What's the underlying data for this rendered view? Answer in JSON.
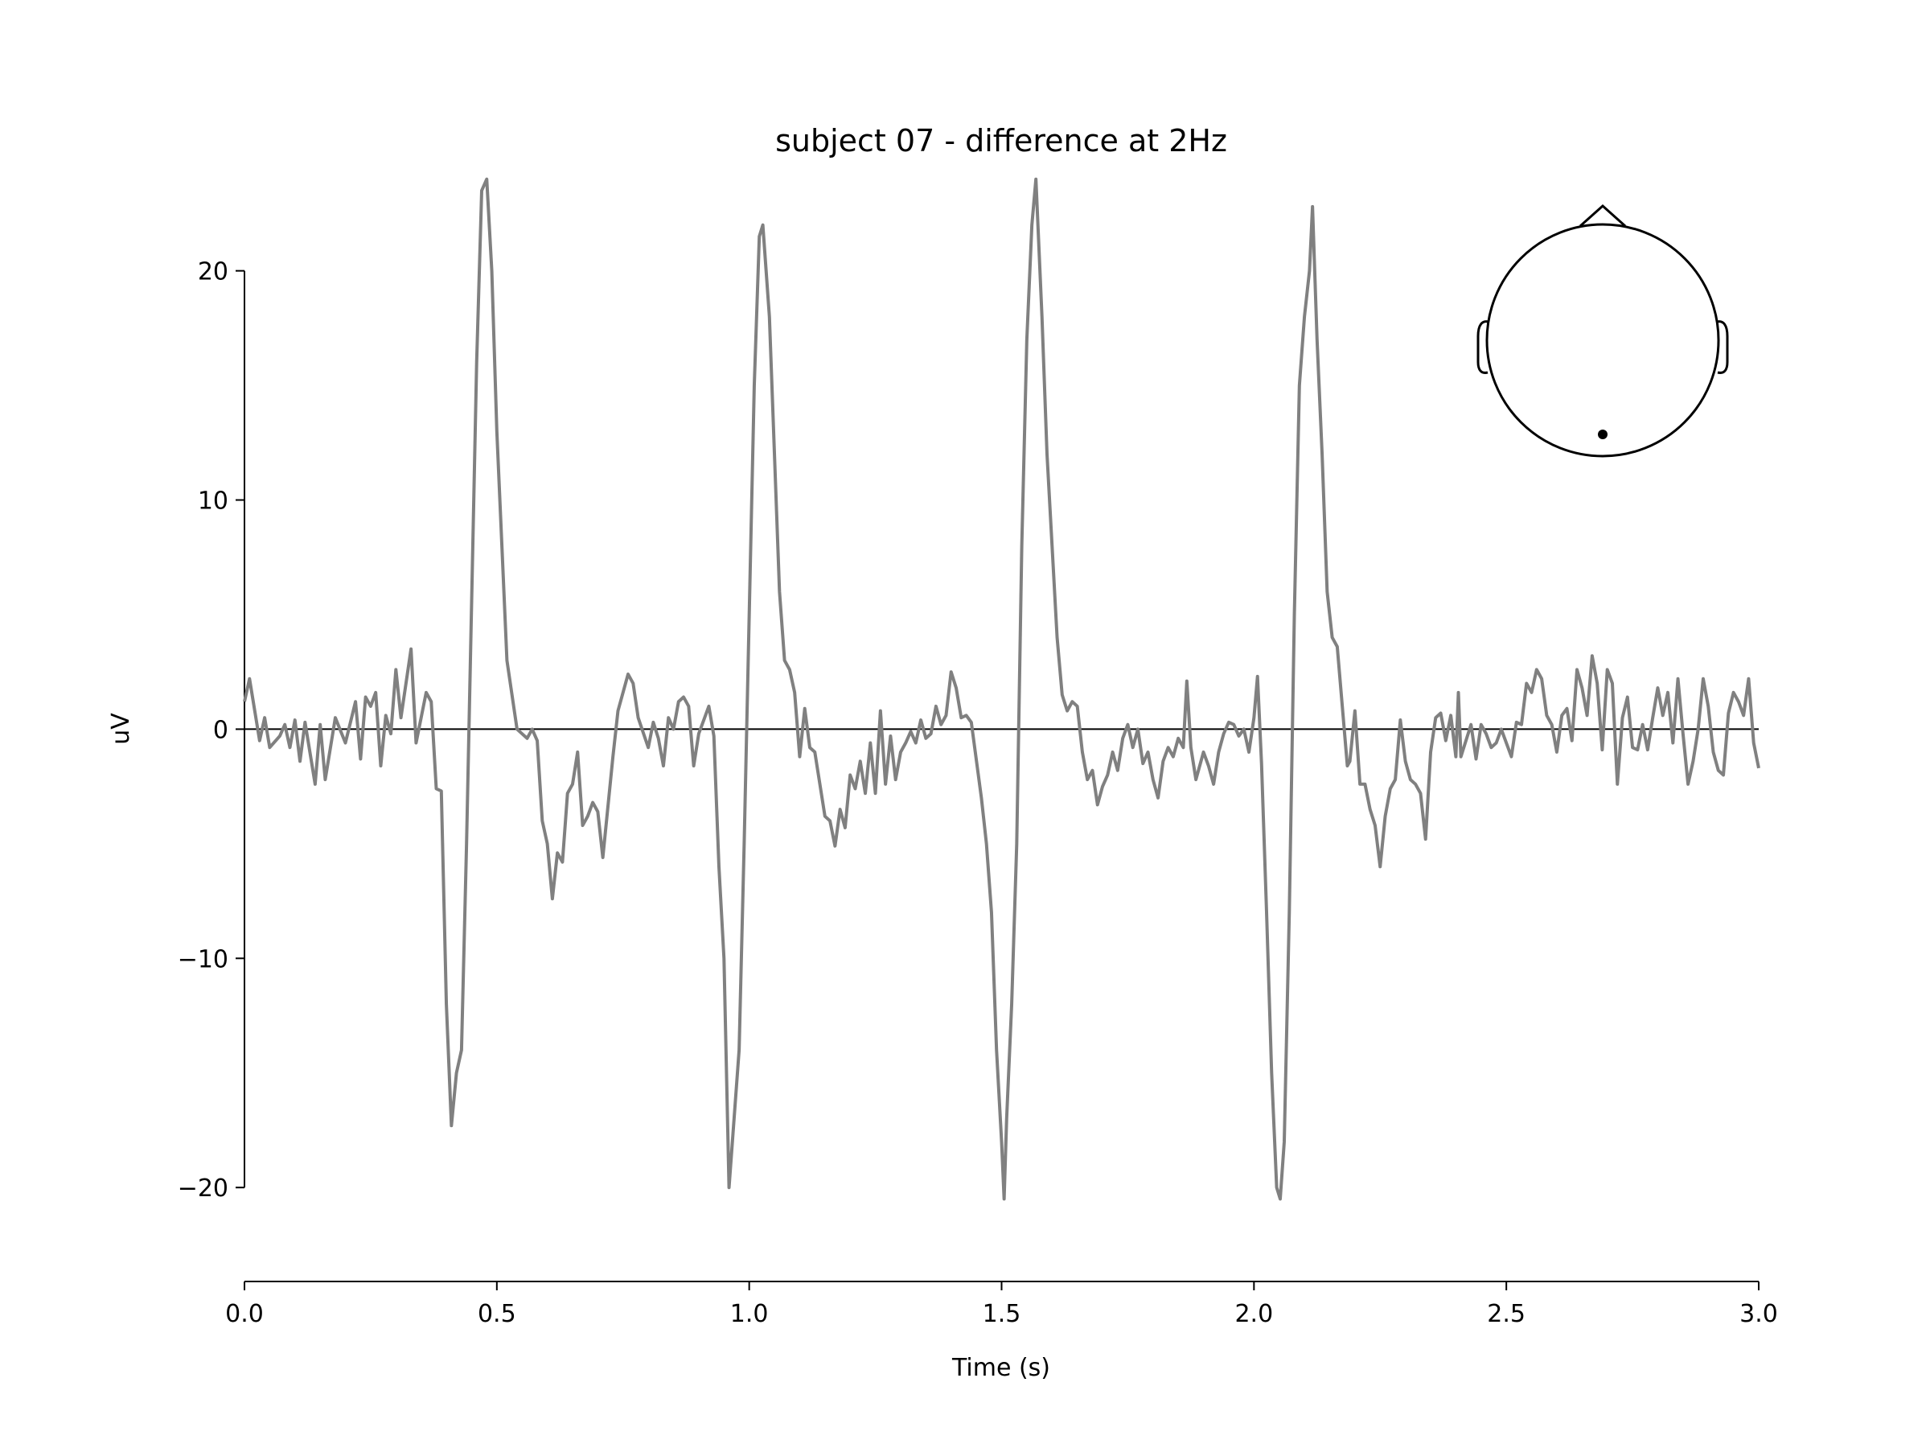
{
  "chart_data": {
    "type": "line",
    "title": "subject 07 - difference at 2Hz",
    "xlabel": "Time (s)",
    "ylabel": "uV",
    "color": "#808080",
    "xlim": [
      0,
      3
    ],
    "ylim": [
      -24.1,
      24.2
    ],
    "xticks": [
      {
        "value": 0,
        "label": "0.0"
      },
      {
        "value": 0.5,
        "label": "0.5"
      },
      {
        "value": 1,
        "label": "1.0"
      },
      {
        "value": 1.5,
        "label": "1.5"
      },
      {
        "value": 2,
        "label": "2.0"
      },
      {
        "value": 2.5,
        "label": "2.5"
      },
      {
        "value": 3,
        "label": "3.0"
      }
    ],
    "yticks": [
      {
        "value": -20,
        "label": "−20"
      },
      {
        "value": -10,
        "label": "−10"
      },
      0,
      10,
      20
    ],
    "x": [
      0,
      0.01,
      0.03,
      0.04,
      0.05,
      0.07,
      0.08,
      0.09,
      0.1,
      0.11,
      0.12,
      0.14,
      0.15,
      0.16,
      0.18,
      0.2,
      0.22,
      0.23,
      0.24,
      0.25,
      0.26,
      0.27,
      0.28,
      0.29,
      0.3,
      0.31,
      0.33,
      0.34,
      0.36,
      0.37,
      0.38,
      0.39,
      0.4,
      0.41,
      0.42,
      0.43,
      0.44,
      0.46,
      0.47,
      0.48,
      0.49,
      0.5,
      0.51,
      0.52,
      0.54,
      0.56,
      0.57,
      0.58,
      0.59,
      0.6,
      0.61,
      0.62,
      0.63,
      0.64,
      0.65,
      0.66,
      0.67,
      0.68,
      0.69,
      0.7,
      0.71,
      0.73,
      0.74,
      0.76,
      0.77,
      0.78,
      0.8,
      0.81,
      0.82,
      0.83,
      0.84,
      0.85,
      0.86,
      0.87,
      0.88,
      0.89,
      0.9,
      0.91,
      0.92,
      0.93,
      0.94,
      0.95,
      0.96,
      0.97,
      0.98,
      0.99,
      1.0,
      1.01,
      1.02,
      1.027,
      1.04,
      1.05,
      1.06,
      1.07,
      1.08,
      1.09,
      1.1,
      1.11,
      1.12,
      1.13,
      1.15,
      1.16,
      1.17,
      1.18,
      1.19,
      1.2,
      1.21,
      1.22,
      1.23,
      1.24,
      1.25,
      1.26,
      1.27,
      1.28,
      1.29,
      1.3,
      1.31,
      1.32,
      1.33,
      1.34,
      1.35,
      1.36,
      1.37,
      1.38,
      1.39,
      1.4,
      1.41,
      1.42,
      1.43,
      1.44,
      1.46,
      1.47,
      1.48,
      1.49,
      1.5,
      1.505,
      1.51,
      1.52,
      1.53,
      1.54,
      1.55,
      1.56,
      1.568,
      1.58,
      1.59,
      1.6,
      1.61,
      1.62,
      1.63,
      1.64,
      1.65,
      1.66,
      1.67,
      1.68,
      1.69,
      1.7,
      1.71,
      1.72,
      1.73,
      1.74,
      1.75,
      1.76,
      1.77,
      1.78,
      1.79,
      1.8,
      1.81,
      1.82,
      1.83,
      1.84,
      1.85,
      1.86,
      1.867,
      1.875,
      1.885,
      1.9,
      1.91,
      1.92,
      1.93,
      1.94,
      1.95,
      1.96,
      1.97,
      1.98,
      1.99,
      2.0,
      2.007,
      2.015,
      2.025,
      2.035,
      2.045,
      2.052,
      2.06,
      2.07,
      2.08,
      2.09,
      2.1,
      2.11,
      2.116,
      2.125,
      2.135,
      2.145,
      2.155,
      2.165,
      2.175,
      2.185,
      2.19,
      2.2,
      2.21,
      2.22,
      2.23,
      2.24,
      2.25,
      2.26,
      2.27,
      2.28,
      2.29,
      2.3,
      2.31,
      2.32,
      2.33,
      2.34,
      2.35,
      2.36,
      2.37,
      2.38,
      2.39,
      2.4,
      2.405,
      2.41,
      2.42,
      2.43,
      2.44,
      2.45,
      2.46,
      2.47,
      2.48,
      2.49,
      2.5,
      2.51,
      2.52,
      2.53,
      2.54,
      2.55,
      2.56,
      2.57,
      2.58,
      2.59,
      2.6,
      2.61,
      2.62,
      2.63,
      2.64,
      2.65,
      2.66,
      2.67,
      2.68,
      2.69,
      2.7,
      2.71,
      2.72,
      2.73,
      2.74,
      2.75,
      2.76,
      2.77,
      2.78,
      2.79,
      2.8,
      2.81,
      2.82,
      2.83,
      2.84,
      2.85,
      2.86,
      2.87,
      2.88,
      2.89,
      2.9,
      2.91,
      2.92,
      2.93,
      2.94,
      2.95,
      2.96,
      2.97,
      2.98,
      2.99,
      3.0
    ],
    "values": [
      1.2,
      2.2,
      -0.5,
      0.5,
      -0.8,
      -0.3,
      0.2,
      -0.8,
      0.4,
      -1.4,
      0.3,
      -2.4,
      0.2,
      -2.2,
      0.5,
      -0.6,
      1.2,
      -1.3,
      1.4,
      1.0,
      1.6,
      -1.6,
      0.6,
      -0.2,
      2.6,
      0.5,
      3.5,
      -0.6,
      1.6,
      1.2,
      -2.6,
      -2.7,
      -12,
      -17.3,
      -15,
      -14,
      -5,
      16,
      23.5,
      24,
      20,
      13,
      8,
      3,
      0,
      -0.4,
      0,
      -0.5,
      -4,
      -5,
      -7.4,
      -5.4,
      -5.8,
      -2.8,
      -2.4,
      -1,
      -4.2,
      -3.8,
      -3.2,
      -3.6,
      -5.6,
      -1.2,
      0.8,
      2.4,
      2,
      0.5,
      -0.8,
      0.3,
      -0.4,
      -1.6,
      0.5,
      0,
      1.2,
      1.4,
      1.0,
      -1.6,
      -0.2,
      0.4,
      1.0,
      -0.3,
      -6,
      -10,
      -20,
      -17,
      -14,
      -5,
      5,
      15,
      21.5,
      22,
      18,
      12,
      6,
      3,
      2.6,
      1.6,
      -1.2,
      0.9,
      -0.8,
      -1,
      -3.8,
      -4,
      -5.1,
      -3.5,
      -4.3,
      -2,
      -2.6,
      -1.4,
      -2.8,
      -0.6,
      -2.8,
      0.8,
      -2.4,
      -0.3,
      -2.2,
      -1,
      -0.6,
      -0.1,
      -0.6,
      0.4,
      -0.4,
      -0.2,
      1.0,
      0.2,
      0.6,
      2.5,
      1.8,
      0.5,
      0.6,
      0.3,
      -3,
      -5,
      -8,
      -14,
      -18,
      -20.5,
      -17,
      -12,
      -5,
      8,
      17,
      22,
      24,
      18,
      12,
      8,
      4,
      1.5,
      0.8,
      1.2,
      1.0,
      -1.0,
      -2.2,
      -1.8,
      -3.3,
      -2.5,
      -2,
      -1.0,
      -1.8,
      -0.4,
      0.2,
      -0.8,
      0,
      -1.5,
      -1.0,
      -2.2,
      -3.0,
      -1.4,
      -0.8,
      -1.2,
      -0.4,
      -0.8,
      2.1,
      -0.8,
      -2.2,
      -1.0,
      -1.6,
      -2.4,
      -1.0,
      -0.2,
      0.3,
      0.2,
      -0.3,
      0,
      -1.0,
      0.5,
      2.3,
      -1.5,
      -8,
      -15,
      -20,
      -20.5,
      -18,
      -8,
      5,
      15,
      18,
      20,
      22.8,
      17,
      12,
      6,
      4,
      3.6,
      1,
      -1.6,
      -1.4,
      0.8,
      -2.4,
      -2.4,
      -3.5,
      -4.2,
      -6,
      -3.8,
      -2.6,
      -2.2,
      0.4,
      -1.4,
      -2.2,
      -2.4,
      -2.8,
      -4.8,
      -1.0,
      0.5,
      0.7,
      -0.5,
      0.6,
      -1.2,
      1.6,
      -1.2,
      -0.5,
      0.2,
      -1.3,
      0.2,
      -0.2,
      -0.8,
      -0.6,
      0,
      -0.6,
      -1.2,
      0.3,
      0.2,
      2.0,
      1.6,
      2.6,
      2.2,
      0.6,
      0.2,
      -1.0,
      0.6,
      0.9,
      -0.5,
      2.6,
      1.8,
      0.6,
      3.2,
      2.0,
      -0.9,
      2.6,
      2.0,
      -2.4,
      0.5,
      1.4,
      -0.8,
      -0.9,
      0.2,
      -0.9,
      0.5,
      1.8,
      0.6,
      1.6,
      -0.6,
      2.2,
      -0.2,
      -2.4,
      -1.4,
      0,
      2.2,
      1.0,
      -1.0,
      -1.8,
      -2.0,
      0.7,
      1.6,
      1.2,
      0.6,
      2.2,
      -0.6,
      -1.7
    ]
  }
}
